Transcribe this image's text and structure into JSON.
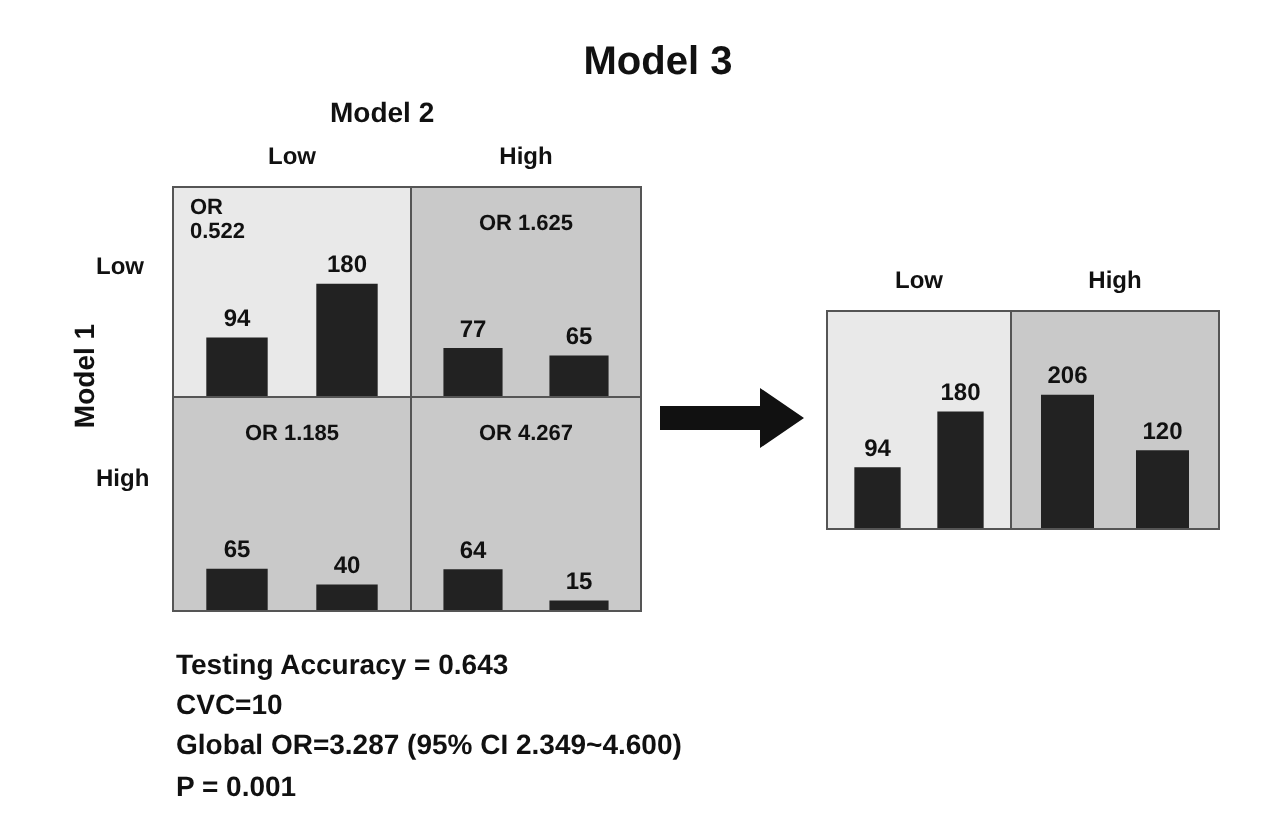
{
  "chart_data": [
    {
      "type": "other",
      "title": "Model 3",
      "annotations": [
        "Model 2",
        "Model 1",
        "Testing Accuracy = 0.643",
        "CVC=10",
        "Global OR=3.287 (95% CI 2.349~4.600)",
        "P = 0.001"
      ]
    },
    {
      "type": "bar",
      "title": "Low",
      "ylabel": "Low",
      "categories": [
        null,
        null
      ],
      "values": [
        94,
        180
      ],
      "color": "#222222",
      "data_labels": true,
      "annotations": [
        "OR 0.522"
      ]
    },
    {
      "type": "bar",
      "title": "High",
      "categories": [
        null,
        null
      ],
      "values": [
        77,
        65
      ],
      "color": "#222222",
      "data_labels": true,
      "annotations": [
        "OR 1.625"
      ]
    },
    {
      "type": "bar",
      "ylabel": "High",
      "categories": [
        null,
        null
      ],
      "values": [
        65,
        40
      ],
      "color": "#222222",
      "data_labels": true,
      "annotations": [
        "OR 1.185"
      ]
    },
    {
      "type": "bar",
      "categories": [
        null,
        null
      ],
      "values": [
        64,
        15
      ],
      "color": "#222222",
      "data_labels": true,
      "annotations": [
        "OR 4.267"
      ]
    },
    {
      "type": "bar",
      "title": "Low",
      "categories": [
        null,
        null
      ],
      "values": [
        94,
        180
      ],
      "color": "#222222",
      "data_labels": true
    },
    {
      "type": "bar",
      "title": "High",
      "categories": [
        null,
        null
      ],
      "values": [
        206,
        120
      ],
      "color": "#222222",
      "data_labels": true
    }
  ]
}
